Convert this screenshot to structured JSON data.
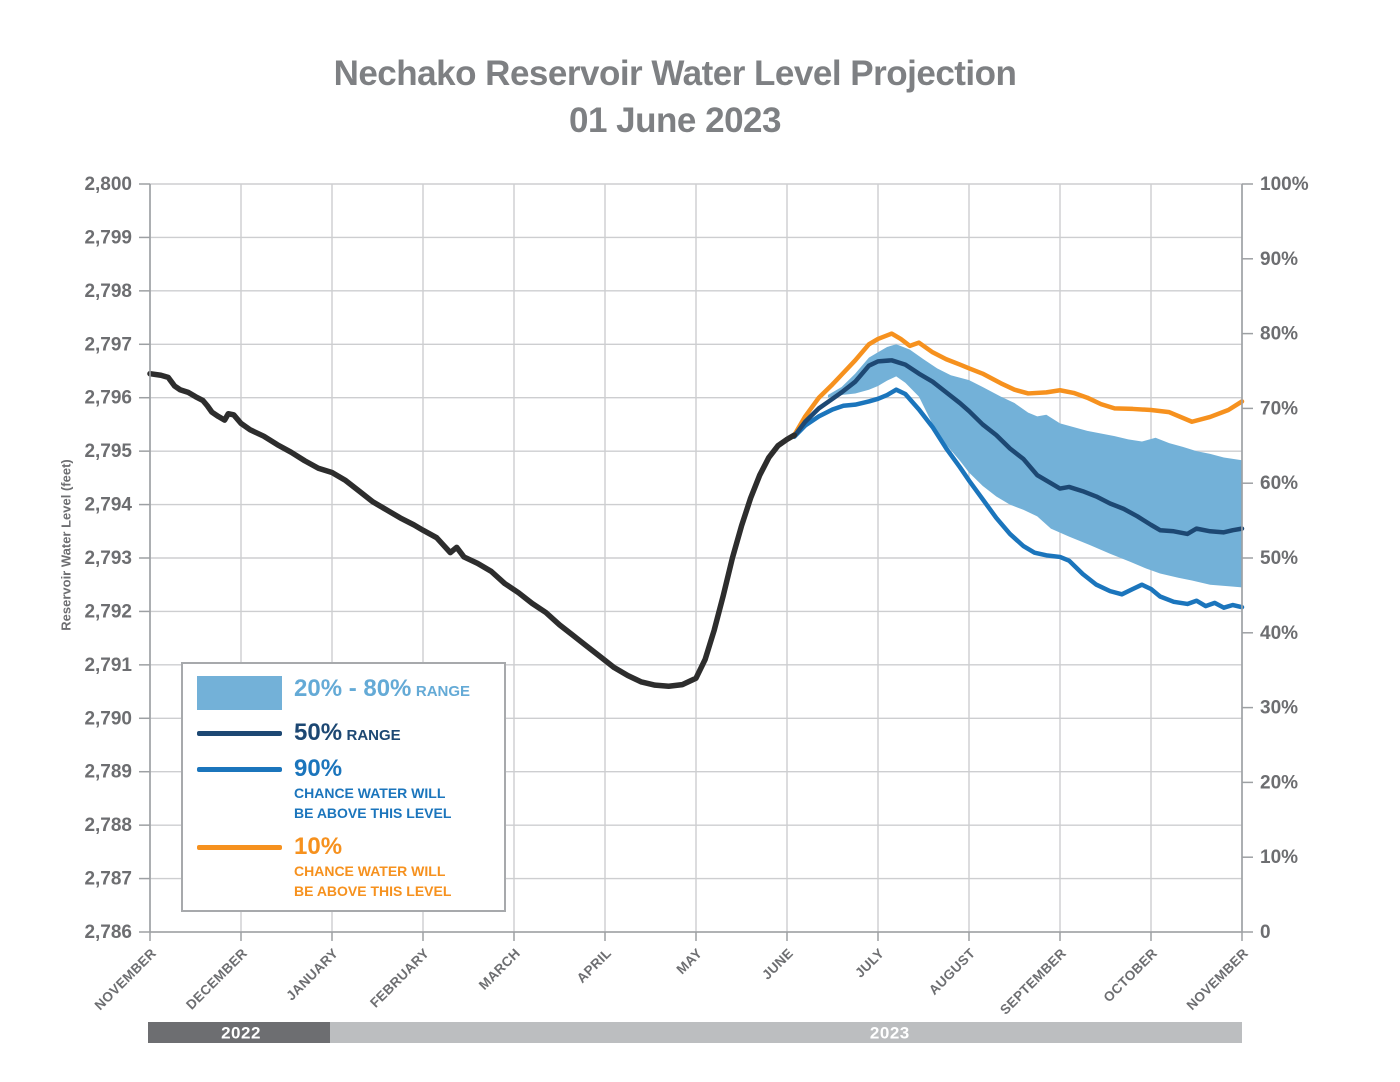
{
  "title": {
    "line1": "Nechako Reservoir Water Level Projection",
    "line2": "01 June 2023"
  },
  "colors": {
    "band": "#73b1d8",
    "p50": "#1d4873",
    "p90": "#1b75bc",
    "p10": "#f6911e",
    "historical": "#2d2d2d",
    "grid": "#cdced0",
    "axis": "#9da0a3",
    "tick_text": "#6d6e71",
    "title_text": "#7e8083",
    "bar_2022": "#6d6e71",
    "bar_2023": "#bcbec0",
    "bar_label": "#ffffff"
  },
  "legend": {
    "items": [
      {
        "swatch": "box",
        "big": "20% - 80%",
        "small": "RANGE",
        "sub1": "",
        "sub2": ""
      },
      {
        "swatch": "line",
        "big": "50%",
        "small": "RANGE",
        "sub1": "",
        "sub2": ""
      },
      {
        "swatch": "line",
        "big": "90%",
        "small": "",
        "sub1": "CHANCE WATER WILL",
        "sub2": "BE ABOVE THIS LEVEL"
      },
      {
        "swatch": "line",
        "big": "10%",
        "small": "",
        "sub1": "CHANCE WATER WILL",
        "sub2": "BE ABOVE THIS LEVEL"
      }
    ]
  },
  "chart_data": {
    "type": "line",
    "title": "Nechako Reservoir Water Level Projection 01 June 2023",
    "grid": true,
    "left_axis": {
      "label": "Reservoir Water Level (feet)",
      "min": 2786,
      "max": 2800,
      "tick_step": 1,
      "tick_labels": [
        "2,800",
        "2,799",
        "2,798",
        "2,797",
        "2,796",
        "2,795",
        "2,794",
        "2,793",
        "2,792",
        "2,791",
        "2,790",
        "2,789",
        "2,788",
        "2,787",
        "2,786"
      ]
    },
    "right_axis": {
      "min": 0,
      "max": 100,
      "tick_step": 10,
      "tick_labels": [
        "100%",
        "90%",
        "80%",
        "70%",
        "60%",
        "50%",
        "40%",
        "30%",
        "20%",
        "10%",
        "0"
      ]
    },
    "x_axis": {
      "unit": "months, 0 = 01 Nov 2022",
      "tick_labels": [
        "NOVEMBER",
        "DECEMBER",
        "JANUARY",
        "FEBRUARY",
        "MARCH",
        "APRIL",
        "MAY",
        "JUNE",
        "JULY",
        "AUGUST",
        "SEPTEMBER",
        "OCTOBER",
        "NOVEMBER"
      ]
    },
    "year_bars": [
      {
        "label": "2022",
        "from": 0,
        "to": 2,
        "label_u": 1.0,
        "color": "#6d6e71"
      },
      {
        "label": "2023",
        "from": 2,
        "to": 12,
        "label_u": 8.13,
        "color": "#bcbec0"
      }
    ],
    "series": [
      {
        "name": "20-80 range band",
        "type": "band",
        "color": "#73b1d8",
        "top": [
          [
            7.45,
            2796.05
          ],
          [
            7.6,
            2796.2
          ],
          [
            7.75,
            2796.45
          ],
          [
            7.9,
            2796.75
          ],
          [
            8,
            2796.85
          ],
          [
            8.1,
            2796.95
          ],
          [
            8.2,
            2797.0
          ],
          [
            8.35,
            2796.9
          ],
          [
            8.5,
            2796.72
          ],
          [
            8.65,
            2796.55
          ],
          [
            8.8,
            2796.42
          ],
          [
            9,
            2796.33
          ],
          [
            9.15,
            2796.2
          ],
          [
            9.35,
            2796.02
          ],
          [
            9.5,
            2795.9
          ],
          [
            9.65,
            2795.72
          ],
          [
            9.75,
            2795.65
          ],
          [
            9.85,
            2795.68
          ],
          [
            10,
            2795.52
          ],
          [
            10.15,
            2795.45
          ],
          [
            10.3,
            2795.38
          ],
          [
            10.45,
            2795.33
          ],
          [
            10.6,
            2795.28
          ],
          [
            10.75,
            2795.22
          ],
          [
            10.9,
            2795.18
          ],
          [
            11.05,
            2795.25
          ],
          [
            11.2,
            2795.15
          ],
          [
            11.35,
            2795.08
          ],
          [
            11.5,
            2795.0
          ],
          [
            11.65,
            2794.95
          ],
          [
            11.8,
            2794.88
          ],
          [
            12,
            2794.83
          ]
        ],
        "bottom": [
          [
            7.45,
            2796.0
          ],
          [
            7.6,
            2796.05
          ],
          [
            7.75,
            2796.08
          ],
          [
            7.9,
            2796.15
          ],
          [
            8,
            2796.22
          ],
          [
            8.1,
            2796.32
          ],
          [
            8.2,
            2796.4
          ],
          [
            8.3,
            2796.28
          ],
          [
            8.45,
            2796.02
          ],
          [
            8.6,
            2795.5
          ],
          [
            8.75,
            2795.12
          ],
          [
            8.9,
            2794.82
          ],
          [
            9,
            2794.6
          ],
          [
            9.15,
            2794.35
          ],
          [
            9.3,
            2794.15
          ],
          [
            9.45,
            2794.0
          ],
          [
            9.6,
            2793.9
          ],
          [
            9.75,
            2793.78
          ],
          [
            9.9,
            2793.55
          ],
          [
            10.1,
            2793.4
          ],
          [
            10.33,
            2793.24
          ],
          [
            10.55,
            2793.08
          ],
          [
            10.77,
            2792.93
          ],
          [
            10.95,
            2792.8
          ],
          [
            11.1,
            2792.71
          ],
          [
            11.3,
            2792.63
          ],
          [
            11.45,
            2792.58
          ],
          [
            11.65,
            2792.5
          ],
          [
            11.87,
            2792.47
          ],
          [
            12,
            2792.45
          ]
        ]
      },
      {
        "name": "10% chance water will be above this level",
        "type": "line",
        "color": "#f6911e",
        "width": 4.5,
        "points": [
          [
            7.08,
            2795.3
          ],
          [
            7.2,
            2795.65
          ],
          [
            7.35,
            2796.0
          ],
          [
            7.5,
            2796.25
          ],
          [
            7.6,
            2796.43
          ],
          [
            7.75,
            2796.7
          ],
          [
            7.9,
            2797.0
          ],
          [
            8,
            2797.1
          ],
          [
            8.15,
            2797.2
          ],
          [
            8.25,
            2797.1
          ],
          [
            8.35,
            2796.97
          ],
          [
            8.45,
            2797.03
          ],
          [
            8.6,
            2796.85
          ],
          [
            8.75,
            2796.72
          ],
          [
            8.9,
            2796.62
          ],
          [
            9,
            2796.55
          ],
          [
            9.15,
            2796.45
          ],
          [
            9.35,
            2796.27
          ],
          [
            9.5,
            2796.15
          ],
          [
            9.65,
            2796.08
          ],
          [
            9.85,
            2796.1
          ],
          [
            10,
            2796.14
          ],
          [
            10.15,
            2796.09
          ],
          [
            10.3,
            2796.0
          ],
          [
            10.45,
            2795.88
          ],
          [
            10.6,
            2795.8
          ],
          [
            10.8,
            2795.79
          ],
          [
            11,
            2795.77
          ],
          [
            11.2,
            2795.73
          ],
          [
            11.45,
            2795.55
          ],
          [
            11.65,
            2795.64
          ],
          [
            11.85,
            2795.77
          ],
          [
            12,
            2795.93
          ]
        ]
      },
      {
        "name": "90% chance water will be above this level",
        "type": "line",
        "color": "#1b75bc",
        "width": 4.5,
        "points": [
          [
            7.08,
            2795.27
          ],
          [
            7.2,
            2795.48
          ],
          [
            7.35,
            2795.65
          ],
          [
            7.5,
            2795.78
          ],
          [
            7.62,
            2795.85
          ],
          [
            7.75,
            2795.87
          ],
          [
            7.9,
            2795.93
          ],
          [
            8,
            2795.98
          ],
          [
            8.1,
            2796.05
          ],
          [
            8.2,
            2796.15
          ],
          [
            8.3,
            2796.07
          ],
          [
            8.45,
            2795.78
          ],
          [
            8.6,
            2795.45
          ],
          [
            8.75,
            2795.05
          ],
          [
            8.9,
            2794.7
          ],
          [
            9,
            2794.45
          ],
          [
            9.15,
            2794.1
          ],
          [
            9.3,
            2793.75
          ],
          [
            9.45,
            2793.45
          ],
          [
            9.6,
            2793.22
          ],
          [
            9.72,
            2793.1
          ],
          [
            9.85,
            2793.05
          ],
          [
            10,
            2793.02
          ],
          [
            10.1,
            2792.95
          ],
          [
            10.25,
            2792.7
          ],
          [
            10.4,
            2792.5
          ],
          [
            10.55,
            2792.38
          ],
          [
            10.68,
            2792.32
          ],
          [
            10.8,
            2792.42
          ],
          [
            10.9,
            2792.5
          ],
          [
            11,
            2792.42
          ],
          [
            11.1,
            2792.28
          ],
          [
            11.25,
            2792.18
          ],
          [
            11.4,
            2792.14
          ],
          [
            11.5,
            2792.2
          ],
          [
            11.6,
            2792.1
          ],
          [
            11.7,
            2792.16
          ],
          [
            11.8,
            2792.07
          ],
          [
            11.9,
            2792.12
          ],
          [
            12,
            2792.08
          ]
        ]
      },
      {
        "name": "50% range",
        "type": "line",
        "color": "#1d4873",
        "width": 4.5,
        "points": [
          [
            7.08,
            2795.28
          ],
          [
            7.2,
            2795.55
          ],
          [
            7.35,
            2795.8
          ],
          [
            7.5,
            2795.98
          ],
          [
            7.6,
            2796.1
          ],
          [
            7.75,
            2796.3
          ],
          [
            7.9,
            2796.6
          ],
          [
            8,
            2796.68
          ],
          [
            8.15,
            2796.7
          ],
          [
            8.3,
            2796.62
          ],
          [
            8.45,
            2796.45
          ],
          [
            8.6,
            2796.3
          ],
          [
            8.75,
            2796.1
          ],
          [
            8.9,
            2795.9
          ],
          [
            9,
            2795.75
          ],
          [
            9.15,
            2795.5
          ],
          [
            9.3,
            2795.3
          ],
          [
            9.45,
            2795.05
          ],
          [
            9.6,
            2794.85
          ],
          [
            9.75,
            2794.55
          ],
          [
            9.9,
            2794.4
          ],
          [
            10,
            2794.3
          ],
          [
            10.1,
            2794.33
          ],
          [
            10.25,
            2794.25
          ],
          [
            10.4,
            2794.15
          ],
          [
            10.55,
            2794.02
          ],
          [
            10.7,
            2793.92
          ],
          [
            10.85,
            2793.78
          ],
          [
            11,
            2793.62
          ],
          [
            11.1,
            2793.52
          ],
          [
            11.25,
            2793.5
          ],
          [
            11.4,
            2793.45
          ],
          [
            11.5,
            2793.55
          ],
          [
            11.65,
            2793.5
          ],
          [
            11.8,
            2793.48
          ],
          [
            11.9,
            2793.52
          ],
          [
            12,
            2793.55
          ]
        ]
      },
      {
        "name": "historical water level",
        "type": "line",
        "color": "#2d2d2d",
        "width": 5.5,
        "points": [
          [
            0,
            2796.45
          ],
          [
            0.12,
            2796.42
          ],
          [
            0.2,
            2796.38
          ],
          [
            0.27,
            2796.22
          ],
          [
            0.33,
            2796.15
          ],
          [
            0.42,
            2796.1
          ],
          [
            0.5,
            2796.02
          ],
          [
            0.58,
            2795.95
          ],
          [
            0.63,
            2795.85
          ],
          [
            0.68,
            2795.73
          ],
          [
            0.75,
            2795.65
          ],
          [
            0.82,
            2795.58
          ],
          [
            0.86,
            2795.7
          ],
          [
            0.92,
            2795.68
          ],
          [
            1,
            2795.52
          ],
          [
            1.1,
            2795.4
          ],
          [
            1.25,
            2795.28
          ],
          [
            1.4,
            2795.12
          ],
          [
            1.55,
            2794.98
          ],
          [
            1.7,
            2794.82
          ],
          [
            1.85,
            2794.68
          ],
          [
            2,
            2794.6
          ],
          [
            2.15,
            2794.45
          ],
          [
            2.3,
            2794.25
          ],
          [
            2.45,
            2794.05
          ],
          [
            2.6,
            2793.9
          ],
          [
            2.75,
            2793.75
          ],
          [
            2.9,
            2793.62
          ],
          [
            3,
            2793.52
          ],
          [
            3.15,
            2793.38
          ],
          [
            3.3,
            2793.1
          ],
          [
            3.37,
            2793.2
          ],
          [
            3.45,
            2793.02
          ],
          [
            3.6,
            2792.9
          ],
          [
            3.75,
            2792.75
          ],
          [
            3.9,
            2792.52
          ],
          [
            4.05,
            2792.35
          ],
          [
            4.2,
            2792.15
          ],
          [
            4.35,
            2791.98
          ],
          [
            4.5,
            2791.75
          ],
          [
            4.65,
            2791.55
          ],
          [
            4.8,
            2791.35
          ],
          [
            4.95,
            2791.15
          ],
          [
            5.1,
            2790.95
          ],
          [
            5.25,
            2790.8
          ],
          [
            5.4,
            2790.68
          ],
          [
            5.55,
            2790.62
          ],
          [
            5.7,
            2790.6
          ],
          [
            5.85,
            2790.63
          ],
          [
            6,
            2790.75
          ],
          [
            6.1,
            2791.1
          ],
          [
            6.2,
            2791.65
          ],
          [
            6.3,
            2792.3
          ],
          [
            6.4,
            2793.0
          ],
          [
            6.5,
            2793.6
          ],
          [
            6.6,
            2794.12
          ],
          [
            6.7,
            2794.55
          ],
          [
            6.8,
            2794.88
          ],
          [
            6.9,
            2795.1
          ],
          [
            7,
            2795.22
          ],
          [
            7.08,
            2795.3
          ]
        ]
      }
    ]
  }
}
